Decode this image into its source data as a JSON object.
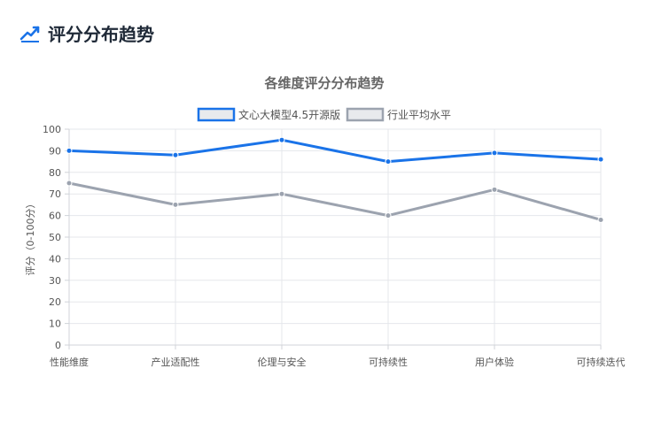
{
  "header": {
    "icon": "trend-line-icon",
    "title": "评分分布趋势"
  },
  "colors": {
    "accent": "#1a73e8",
    "series1": "#1a73e8",
    "series2": "#9ca3af"
  },
  "chart_data": {
    "type": "line",
    "title": "各维度评分分布趋势",
    "xlabel": "",
    "ylabel": "评分（0-100分）",
    "ylim": [
      0,
      100
    ],
    "yticks": [
      0,
      10,
      20,
      30,
      40,
      50,
      60,
      70,
      80,
      90,
      100
    ],
    "grid": true,
    "legend_position": "top-center",
    "categories": [
      "性能维度",
      "产业适配性",
      "伦理与安全",
      "可持续性",
      "用户体验",
      "可持续迭代"
    ],
    "series": [
      {
        "name": "文心大模型4.5开源版",
        "values": [
          90,
          88,
          95,
          85,
          89,
          86
        ]
      },
      {
        "name": "行业平均水平",
        "values": [
          75,
          65,
          70,
          60,
          72,
          58
        ]
      }
    ]
  }
}
